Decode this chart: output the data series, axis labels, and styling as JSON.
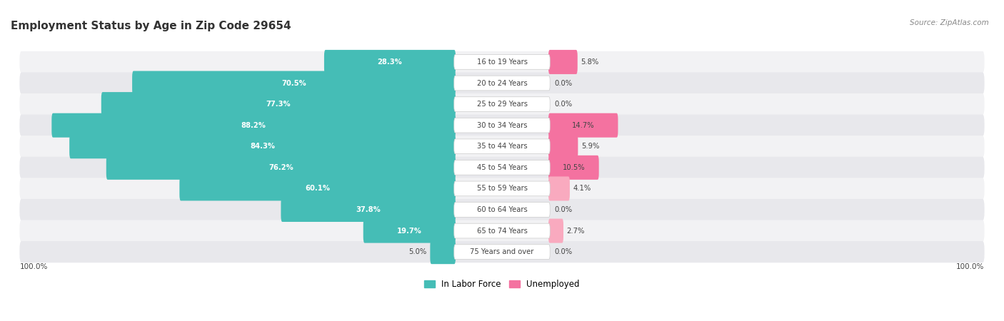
{
  "title": "Employment Status by Age in Zip Code 29654",
  "source": "Source: ZipAtlas.com",
  "categories": [
    "16 to 19 Years",
    "20 to 24 Years",
    "25 to 29 Years",
    "30 to 34 Years",
    "35 to 44 Years",
    "45 to 54 Years",
    "55 to 59 Years",
    "60 to 64 Years",
    "65 to 74 Years",
    "75 Years and over"
  ],
  "labor_force": [
    28.3,
    70.5,
    77.3,
    88.2,
    84.3,
    76.2,
    60.1,
    37.8,
    19.7,
    5.0
  ],
  "unemployed": [
    5.8,
    0.0,
    0.0,
    14.7,
    5.9,
    10.5,
    4.1,
    0.0,
    2.7,
    0.0
  ],
  "labor_force_color": "#45BDB6",
  "unemployed_color_strong": "#F472A0",
  "unemployed_color_light": "#F9AABF",
  "unemployed_thresholds": [
    5.0,
    10.0
  ],
  "row_colors": [
    "#F2F2F4",
    "#E8E8EC"
  ],
  "label_bg_color": "#FFFFFF",
  "text_dark": "#444444",
  "text_white": "#FFFFFF",
  "title_color": "#333333",
  "figure_bg": "#FFFFFF",
  "max_val": 100.0
}
